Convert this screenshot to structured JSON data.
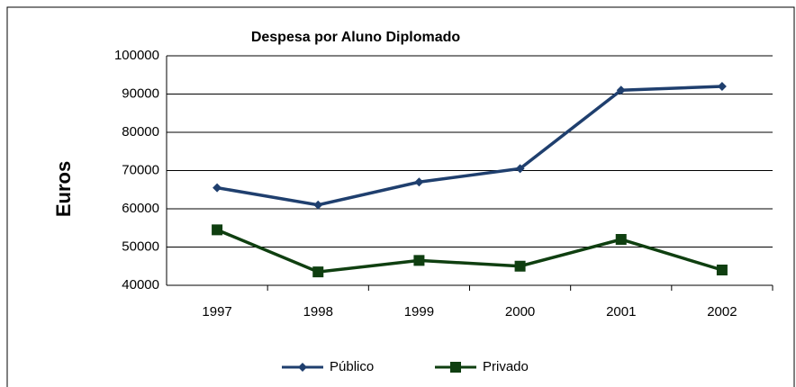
{
  "chart_data": {
    "type": "line",
    "title": "Despesa por Aluno Diplomado",
    "y_label": "Euros",
    "categories": [
      "1997",
      "1998",
      "1999",
      "2000",
      "2001",
      "2002"
    ],
    "series": [
      {
        "name": "Público",
        "color": "#1f3f6e",
        "marker": "diamond",
        "values": [
          65500,
          61000,
          67000,
          70500,
          91000,
          92000
        ]
      },
      {
        "name": "Privado",
        "color": "#0f3f10",
        "marker": "square",
        "values": [
          54500,
          43500,
          46500,
          45000,
          52000,
          44000
        ]
      }
    ],
    "ylim": [
      40000,
      100000
    ],
    "yticks": [
      40000,
      50000,
      60000,
      70000,
      80000,
      90000,
      100000
    ],
    "grid": true,
    "legend": "bottom"
  }
}
